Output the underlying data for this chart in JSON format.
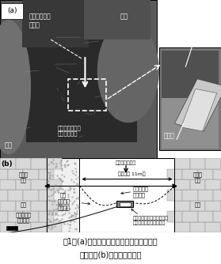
{
  "fig_width": 2.79,
  "fig_height": 3.34,
  "dpi": 100,
  "bg_color": "#ffffff",
  "caption_line1": "図1　(a)最深河床部へのセンサー設置状況",
  "caption_line2": "　　と、(b)その平面模式図",
  "photo_label_a": "(a)",
  "label_hidari": "左岸",
  "label_migi": "右岸",
  "label_chain": "ステンレスチ\nェーン",
  "label_sensor_fixed": "金属板に固定さ\nれたセンサー",
  "label_sensor": "センサー",
  "label_kinzoku": "金属板",
  "schematic_label_b": "(b)",
  "schematic_flow": "「川の流れ方向",
  "schematic_width_label": "河道（幞 11m）",
  "schematic_chain": "ステンレス\nチェーン",
  "schematic_cable": "センサー\nケーブル",
  "schematic_fixed_left": "樹幹に\n固定",
  "schematic_fixed_right": "樹幹に\n固定",
  "schematic_migi": "右岸",
  "schematic_hidari": "左岸",
  "schematic_riverbed": "砂州",
  "schematic_logger": "データロガ\nーに接続",
  "schematic_sensor_full": "金属板とステンレスチェー\nンで固定されたセンサー"
}
